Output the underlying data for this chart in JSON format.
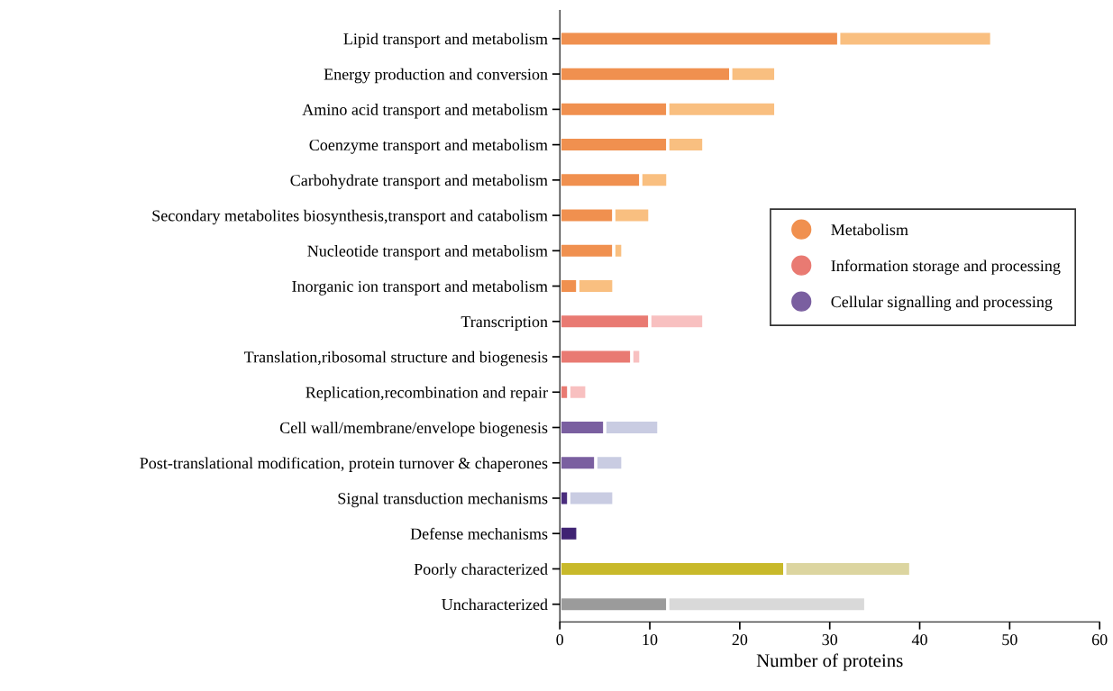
{
  "chart_data": {
    "type": "bar",
    "orientation": "horizontal",
    "stacked": true,
    "categories": [
      "Lipid transport and metabolism",
      "Energy production and conversion",
      "Amino acid transport and metabolism",
      "Coenzyme transport and metabolism",
      "Carbohydrate transport and metabolism",
      "Secondary metabolites biosynthesis,transport and catabolism",
      "Nucleotide transport and metabolism",
      "Inorganic ion transport and metabolism",
      "Transcription",
      "Translation,ribosomal structure and biogenesis",
      "Replication,recombination and repair",
      "Cell wall/membrane/envelope biogenesis",
      "Post-translational modification, protein turnover & chaperones",
      "Signal transduction mechanisms",
      "Defense mechanisms",
      "Poorly characterized",
      "Uncharacterized"
    ],
    "series": [
      {
        "name": "Metabolism",
        "color": "#f0904f",
        "colors": [
          "#f0904f",
          "#f0904f",
          "#f0904f",
          "#f0904f",
          "#f0904f",
          "#f0904f",
          "#f0904f",
          "#f0904f",
          null,
          null,
          null,
          null,
          null,
          null,
          null,
          null,
          null
        ],
        "values": [
          31,
          19,
          12,
          12,
          9,
          6,
          6,
          2,
          null,
          null,
          null,
          null,
          null,
          null,
          null,
          null,
          null
        ]
      },
      {
        "name": "Information storage and processing",
        "color": "#e97a72",
        "colors": [
          null,
          null,
          null,
          null,
          null,
          null,
          null,
          null,
          "#e97a72",
          "#e97a72",
          "#e97a72",
          null,
          null,
          null,
          null,
          null,
          null
        ],
        "values": [
          null,
          null,
          null,
          null,
          null,
          null,
          null,
          null,
          10,
          8,
          1,
          null,
          null,
          null,
          null,
          null,
          null
        ]
      },
      {
        "name": "Cellular signalling and processing",
        "color": "#7a5fa0",
        "colors": [
          null,
          null,
          null,
          null,
          null,
          null,
          null,
          null,
          null,
          null,
          null,
          "#7a5fa0",
          "#7a5fa0",
          "#4a2d7d",
          "#3f2373",
          null,
          null
        ],
        "values": [
          null,
          null,
          null,
          null,
          null,
          null,
          null,
          null,
          null,
          null,
          null,
          5,
          4,
          1,
          2,
          null,
          null
        ]
      },
      {
        "colors": [
          null,
          null,
          null,
          null,
          null,
          null,
          null,
          null,
          null,
          null,
          null,
          null,
          null,
          null,
          null,
          "#c8b92a",
          "#9b9b9b"
        ],
        "values": [
          null,
          null,
          null,
          null,
          null,
          null,
          null,
          null,
          null,
          null,
          null,
          null,
          null,
          null,
          null,
          25,
          12
        ]
      },
      {
        "colors": [
          "#f9bf80",
          "#f9bf80",
          "#f9bf80",
          "#f9bf80",
          "#f9bf80",
          "#f9bf80",
          "#f9bf80",
          "#f9bf80",
          "#f8c0c0",
          "#f8c0c0",
          "#f8c0c0",
          "#c9cce2",
          "#c9cce2",
          "#c9cce2",
          null,
          "#dcd5a0",
          "#d9d9d9"
        ],
        "values": [
          17,
          5,
          12,
          4,
          3,
          4,
          1,
          4,
          6,
          1,
          2,
          6,
          3,
          5,
          null,
          14,
          22
        ]
      }
    ],
    "xlabel": "Number of proteins",
    "xlim": [
      0,
      60
    ],
    "xticks": [
      0,
      10,
      20,
      30,
      40,
      50,
      60
    ],
    "legend": "right",
    "marker": "circle",
    "grid": false
  }
}
